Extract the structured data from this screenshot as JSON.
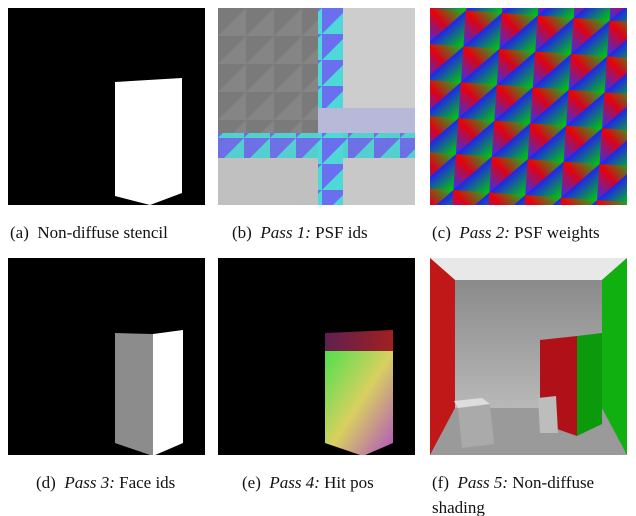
{
  "panels": [
    {
      "label": "(a)",
      "caption": "Non-diffuse stencil"
    },
    {
      "label": "(b)",
      "pass": "Pass 1:",
      "caption": "PSF ids"
    },
    {
      "label": "(c)",
      "pass": "Pass 2:",
      "caption": "PSF weights"
    },
    {
      "label": "(d)",
      "pass": "Pass 3:",
      "caption": "Face ids"
    },
    {
      "label": "(e)",
      "pass": "Pass 4:",
      "caption": "Hit pos"
    },
    {
      "label": "(f)",
      "pass": "Pass 5:",
      "caption": "Non-diffuse shading"
    }
  ]
}
